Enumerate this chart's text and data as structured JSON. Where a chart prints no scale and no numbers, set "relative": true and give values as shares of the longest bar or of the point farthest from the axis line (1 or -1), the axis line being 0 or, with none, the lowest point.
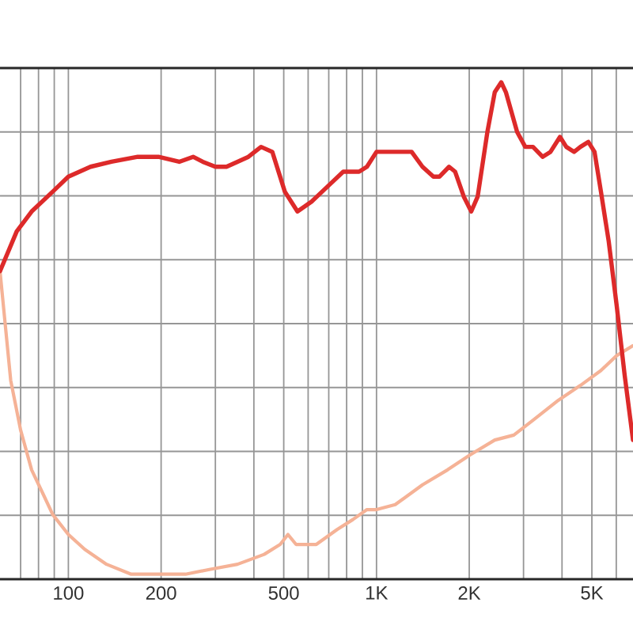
{
  "chart_data": {
    "type": "line",
    "relative": true,
    "log": "x",
    "grid": true,
    "marker": "none",
    "line_style": "solid",
    "xlim": [
      60,
      6800
    ],
    "xticks": [
      {
        "value": 70,
        "label": null
      },
      {
        "value": 80,
        "label": null
      },
      {
        "value": 90,
        "label": null
      },
      100,
      200,
      {
        "value": 300,
        "label": null
      },
      {
        "value": 400,
        "label": null
      },
      500,
      {
        "value": 600,
        "label": null
      },
      {
        "value": 700,
        "label": null
      },
      {
        "value": 800,
        "label": null
      },
      {
        "value": 900,
        "label": null
      },
      {
        "value": 1000,
        "label": "1K"
      },
      {
        "value": 2000,
        "label": "2K"
      },
      {
        "value": 3000,
        "label": null
      },
      {
        "value": 4000,
        "label": null
      },
      {
        "value": 5000,
        "label": "5K"
      },
      {
        "value": 6000,
        "label": null
      }
    ],
    "series": [
      {
        "color": "#f5b296",
        "x": [
          60,
          62,
          65,
          70,
          76,
          83,
          89,
          100,
          113,
          133,
          160,
          196,
          240,
          289,
          354,
          432,
          487,
          516,
          548,
          581,
          638,
          745,
          838,
          931,
          1000,
          1150,
          1410,
          1700,
          2010,
          2420,
          2790,
          3220,
          3890,
          4590,
          5350,
          6020,
          6800
        ],
        "values": [
          0.62,
          0.53,
          0.4,
          0.3,
          0.22,
          0.17,
          0.13,
          0.09,
          0.06,
          0.03,
          0.01,
          0.01,
          0.01,
          0.02,
          0.03,
          0.05,
          0.07,
          0.09,
          0.07,
          0.07,
          0.07,
          0.1,
          0.12,
          0.14,
          0.14,
          0.15,
          0.19,
          0.22,
          0.25,
          0.28,
          0.29,
          0.32,
          0.36,
          0.39,
          0.42,
          0.45,
          0.47
        ]
      },
      {
        "color": "#dd2a2a",
        "x": [
          60,
          68,
          76,
          89,
          100,
          118,
          138,
          168,
          196,
          229,
          254,
          273,
          300,
          326,
          354,
          384,
          422,
          459,
          504,
          554,
          616,
          693,
          780,
          878,
          931,
          1000,
          1110,
          1190,
          1300,
          1410,
          1530,
          1600,
          1720,
          1800,
          1920,
          2030,
          2130,
          2290,
          2420,
          2540,
          2630,
          2860,
          3040,
          3220,
          3460,
          3670,
          3940,
          4130,
          4380,
          4590,
          4870,
          5100,
          5350,
          5670,
          6020,
          6390,
          6800
        ],
        "values": [
          0.62,
          0.7,
          0.74,
          0.78,
          0.81,
          0.83,
          0.84,
          0.85,
          0.85,
          0.84,
          0.85,
          0.84,
          0.83,
          0.83,
          0.84,
          0.85,
          0.87,
          0.86,
          0.78,
          0.74,
          0.76,
          0.79,
          0.82,
          0.82,
          0.83,
          0.86,
          0.86,
          0.86,
          0.86,
          0.83,
          0.81,
          0.81,
          0.83,
          0.82,
          0.77,
          0.74,
          0.77,
          0.9,
          0.98,
          1.0,
          0.98,
          0.9,
          0.87,
          0.87,
          0.85,
          0.86,
          0.89,
          0.87,
          0.86,
          0.87,
          0.88,
          0.86,
          0.78,
          0.68,
          0.55,
          0.41,
          0.28
        ]
      }
    ]
  }
}
